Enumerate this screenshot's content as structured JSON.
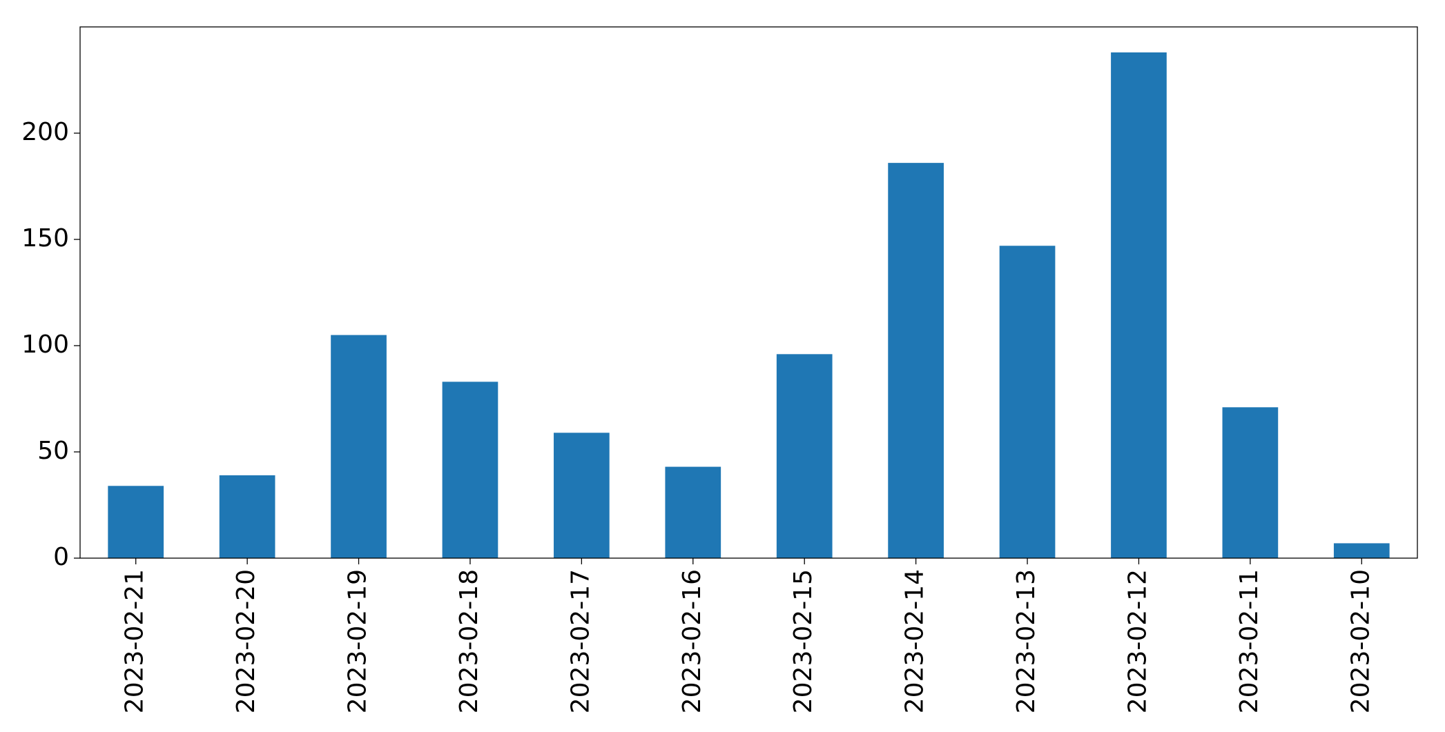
{
  "chart_data": {
    "type": "bar",
    "categories": [
      "2023-02-21",
      "2023-02-20",
      "2023-02-19",
      "2023-02-18",
      "2023-02-17",
      "2023-02-16",
      "2023-02-15",
      "2023-02-14",
      "2023-02-13",
      "2023-02-12",
      "2023-02-11",
      "2023-02-10"
    ],
    "values": [
      34,
      39,
      105,
      83,
      59,
      43,
      96,
      186,
      147,
      238,
      71,
      7
    ],
    "color": "#1f77b4",
    "ylim": [
      0,
      250
    ],
    "yticks": [
      0,
      50,
      100,
      150,
      200
    ],
    "grid": false
  }
}
